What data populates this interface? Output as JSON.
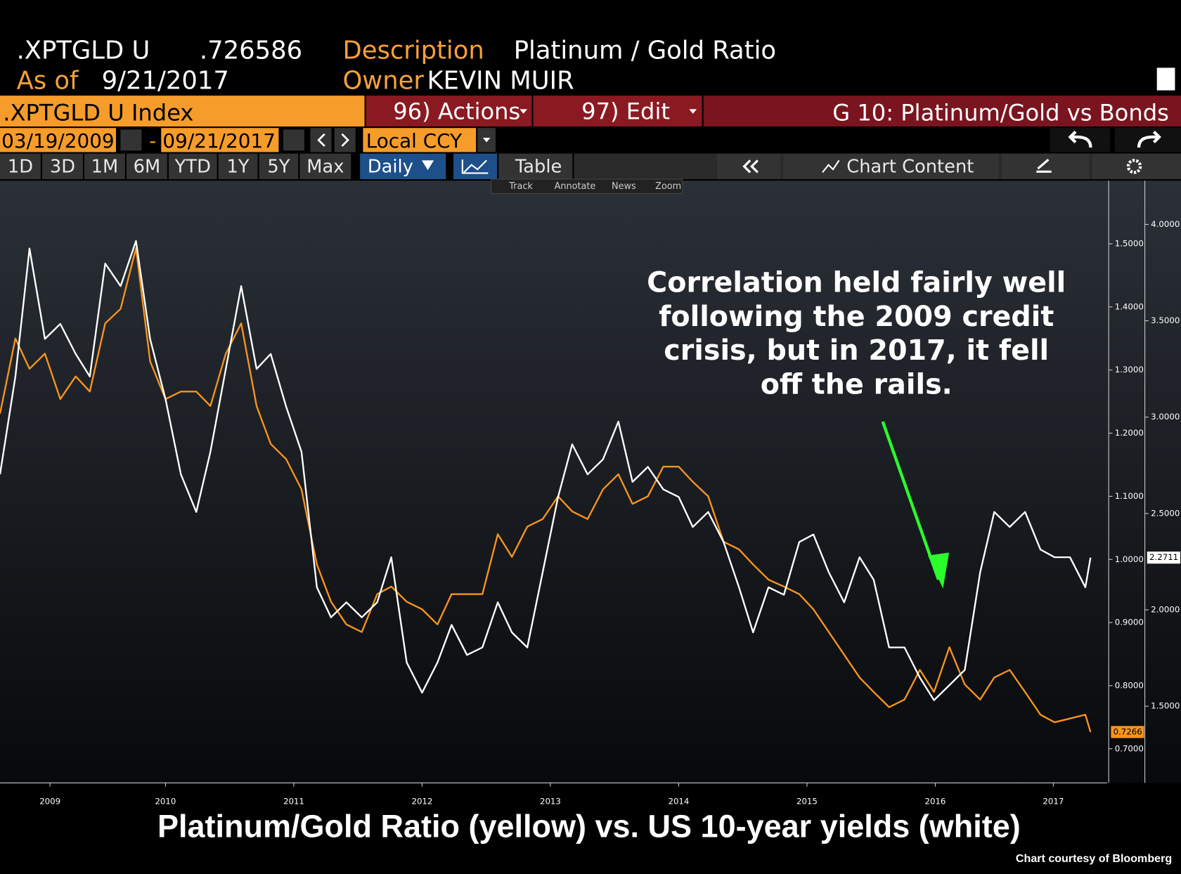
{
  "header": {
    "ticker": ".XPTGLD U",
    "price": ".726586",
    "description_label": "Description",
    "description": "Platinum / Gold Ratio",
    "asof_label": "As of",
    "asof": "9/21/2017",
    "owner_label": "Owner",
    "owner": "KEVIN MUIR"
  },
  "toolbar": {
    "security": ".XPTGLD U Index",
    "actions": "96) Actions",
    "edit": "97) Edit",
    "chart_name": "G 10: Platinum/Gold vs Bonds",
    "start_date": "03/19/2009",
    "date_sep": "-",
    "end_date": "09/21/2017",
    "currency": "Local CCY",
    "periods": [
      "1D",
      "3D",
      "1M",
      "6M",
      "YTD",
      "1Y",
      "5Y",
      "Max"
    ],
    "frequency": "Daily",
    "table": "Table",
    "chart_content": "Chart Content",
    "tools": [
      "Track",
      "Annotate",
      "News",
      "Zoom"
    ]
  },
  "chart_data": {
    "type": "line",
    "caption": "Platinum/Gold Ratio (yellow) vs. US 10-year yields (white)",
    "credit": "Chart courtesy of Bloomberg",
    "annotation": [
      "Correlation held fairly well",
      "following the 2009 credit",
      "crisis, but in 2017, it fell",
      "off the rails."
    ],
    "x": [
      2009.21,
      2009.33,
      2009.44,
      2009.56,
      2009.68,
      2009.8,
      2009.91,
      2010.03,
      2010.15,
      2010.27,
      2010.38,
      2010.5,
      2010.62,
      2010.74,
      2010.85,
      2010.97,
      2011.09,
      2011.21,
      2011.32,
      2011.44,
      2011.56,
      2011.68,
      2011.79,
      2011.91,
      2012.03,
      2012.15,
      2012.26,
      2012.38,
      2012.5,
      2012.62,
      2012.73,
      2012.85,
      2012.97,
      2013.09,
      2013.2,
      2013.32,
      2013.44,
      2013.56,
      2013.67,
      2013.79,
      2013.91,
      2014.03,
      2014.14,
      2014.26,
      2014.38,
      2014.5,
      2014.61,
      2014.73,
      2014.85,
      2014.97,
      2015.08,
      2015.2,
      2015.32,
      2015.44,
      2015.55,
      2015.67,
      2015.79,
      2015.91,
      2016.02,
      2016.14,
      2016.26,
      2016.38,
      2016.49,
      2016.61,
      2016.73,
      2016.85,
      2016.96,
      2017.08,
      2017.2,
      2017.32,
      2017.43,
      2017.55,
      2017.67,
      2017.71
    ],
    "series": [
      {
        "color": "#f7941d",
        "axis": "y",
        "values": [
          1.231,
          1.35,
          1.302,
          1.326,
          1.254,
          1.29,
          1.266,
          1.374,
          1.397,
          1.493,
          1.314,
          1.254,
          1.266,
          1.266,
          1.243,
          1.326,
          1.374,
          1.243,
          1.183,
          1.159,
          1.111,
          0.992,
          0.933,
          0.897,
          0.885,
          0.945,
          0.957,
          0.933,
          0.921,
          0.897,
          0.945,
          0.945,
          0.945,
          1.04,
          1.004,
          1.052,
          1.064,
          1.1,
          1.076,
          1.064,
          1.111,
          1.135,
          1.088,
          1.1,
          1.147,
          1.147,
          1.123,
          1.1,
          1.028,
          1.016,
          0.992,
          0.968,
          0.957,
          0.945,
          0.921,
          0.885,
          0.849,
          0.813,
          0.79,
          0.766,
          0.778,
          0.825,
          0.79,
          0.861,
          0.802,
          0.778,
          0.813,
          0.825,
          0.79,
          0.754,
          0.742,
          0.748,
          0.754,
          0.7266
        ]
      },
      {
        "color": "#ffffff",
        "axis": "y2",
        "values": [
          2.703,
          3.211,
          3.875,
          3.406,
          3.484,
          3.328,
          3.211,
          3.797,
          3.68,
          3.914,
          3.406,
          3.094,
          2.703,
          2.508,
          2.82,
          3.25,
          3.68,
          3.25,
          3.328,
          3.055,
          2.82,
          2.117,
          1.961,
          2.039,
          1.961,
          2.039,
          2.273,
          1.727,
          1.57,
          1.727,
          1.922,
          1.766,
          1.805,
          2.039,
          1.883,
          1.805,
          2.195,
          2.586,
          2.859,
          2.703,
          2.781,
          2.977,
          2.664,
          2.742,
          2.625,
          2.586,
          2.43,
          2.508,
          2.352,
          2.117,
          1.883,
          2.117,
          2.078,
          2.352,
          2.391,
          2.195,
          2.039,
          2.273,
          2.156,
          1.805,
          1.805,
          1.648,
          1.531,
          1.609,
          1.688,
          2.195,
          2.508,
          2.43,
          2.508,
          2.313,
          2.273,
          2.273,
          2.117,
          2.2711
        ]
      }
    ],
    "xlim": [
      2009.21,
      2017.84
    ],
    "xticks": [
      {
        "value": 2009.6,
        "label": "2009"
      },
      {
        "value": 2010.5,
        "label": "2010"
      },
      {
        "value": 2011.5,
        "label": "2011"
      },
      {
        "value": 2012.5,
        "label": "2012"
      },
      {
        "value": 2013.5,
        "label": "2013"
      },
      {
        "value": 2014.5,
        "label": "2014"
      },
      {
        "value": 2015.5,
        "label": "2015"
      },
      {
        "value": 2016.5,
        "label": "2016"
      },
      {
        "value": 2017.42,
        "label": "2017"
      }
    ],
    "ylim": [
      0.646,
      1.6
    ],
    "yticks": [
      {
        "value": 0.7,
        "label": "0.7000"
      },
      {
        "value": 0.8,
        "label": "0.8000"
      },
      {
        "value": 0.9,
        "label": "0.9000"
      },
      {
        "value": 1.0,
        "label": "1.0000"
      },
      {
        "value": 1.1,
        "label": "1.1000"
      },
      {
        "value": 1.2,
        "label": "1.2000"
      },
      {
        "value": 1.3,
        "label": "1.3000"
      },
      {
        "value": 1.4,
        "label": "1.4000"
      },
      {
        "value": 1.5,
        "label": "1.5000"
      }
    ],
    "y2lim": [
      1.102,
      4.227
    ],
    "y2ticks": [
      {
        "value": 1.5,
        "label": "1.5000"
      },
      {
        "value": 2.0,
        "label": "2.0000"
      },
      {
        "value": 2.5,
        "label": "2.5000"
      },
      {
        "value": 3.0,
        "label": "3.0000"
      },
      {
        "value": 3.5,
        "label": "3.5000"
      },
      {
        "value": 4.0,
        "label": "4.0000"
      }
    ]
  }
}
